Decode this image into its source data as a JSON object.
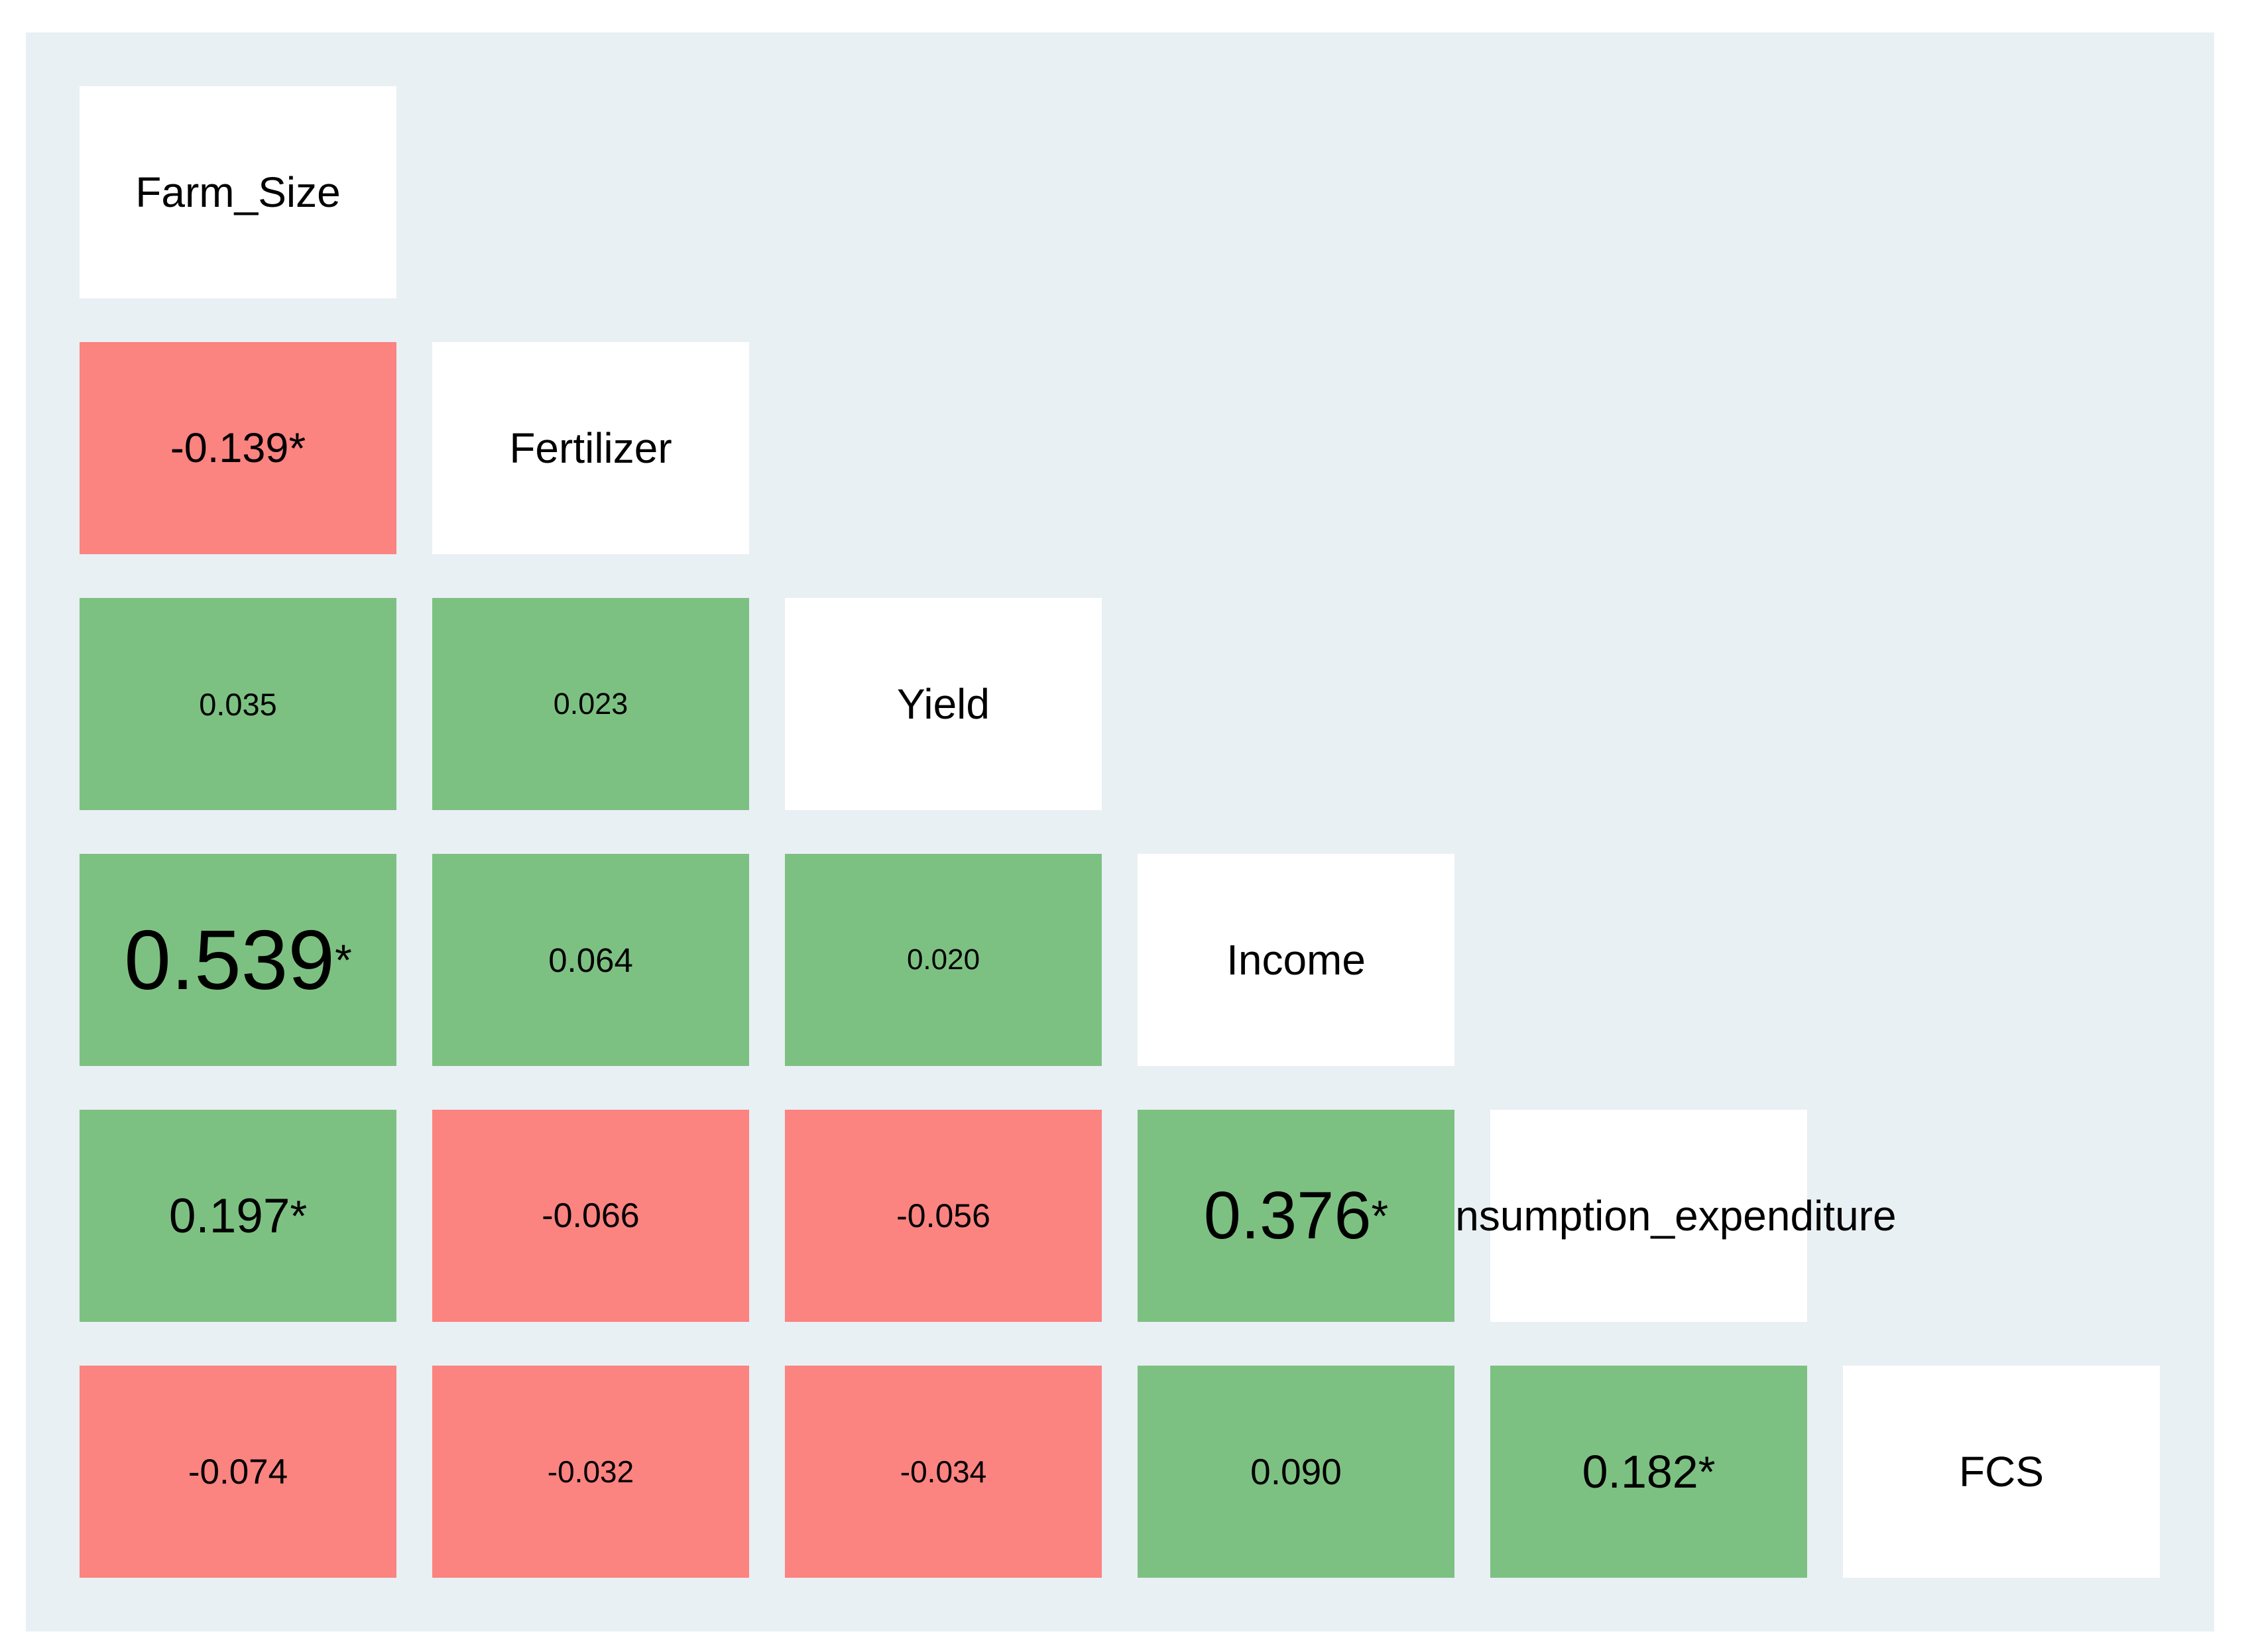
{
  "figure": {
    "page_background": "#ffffff",
    "panel_background": "#e8f0f3",
    "text_color": "#000000"
  },
  "chart_data": {
    "type": "heatmap",
    "subtype": "lower-triangle correlation matrix",
    "title": "",
    "variables": [
      "Farm_Size",
      "Fertilizer",
      "Yield",
      "Income",
      "Consumption_expenditure",
      "FCS"
    ],
    "significance_marker": "*",
    "legend_position": "none",
    "grid_on": false,
    "colors": {
      "positive": "#7dc182",
      "negative": "#fb8380",
      "diagonal": "#ffffff"
    },
    "correlations": [
      {
        "row": "Fertilizer",
        "col": "Farm_Size",
        "value": -0.139,
        "text": "-0.139",
        "significant": true
      },
      {
        "row": "Yield",
        "col": "Farm_Size",
        "value": 0.035,
        "text": "0.035",
        "significant": false
      },
      {
        "row": "Yield",
        "col": "Fertilizer",
        "value": 0.023,
        "text": "0.023",
        "significant": false
      },
      {
        "row": "Income",
        "col": "Farm_Size",
        "value": 0.539,
        "text": "0.539",
        "significant": true
      },
      {
        "row": "Income",
        "col": "Fertilizer",
        "value": 0.064,
        "text": "0.064",
        "significant": false
      },
      {
        "row": "Income",
        "col": "Yield",
        "value": 0.02,
        "text": "0.020",
        "significant": false
      },
      {
        "row": "Consumption_expenditure",
        "col": "Farm_Size",
        "value": 0.197,
        "text": "0.197",
        "significant": true
      },
      {
        "row": "Consumption_expenditure",
        "col": "Fertilizer",
        "value": -0.066,
        "text": "-0.066",
        "significant": false
      },
      {
        "row": "Consumption_expenditure",
        "col": "Yield",
        "value": -0.056,
        "text": "-0.056",
        "significant": false
      },
      {
        "row": "Consumption_expenditure",
        "col": "Income",
        "value": 0.376,
        "text": "0.376",
        "significant": true
      },
      {
        "row": "FCS",
        "col": "Farm_Size",
        "value": -0.074,
        "text": "-0.074",
        "significant": false
      },
      {
        "row": "FCS",
        "col": "Fertilizer",
        "value": -0.032,
        "text": "-0.032",
        "significant": false
      },
      {
        "row": "FCS",
        "col": "Yield",
        "value": -0.034,
        "text": "-0.034",
        "significant": false
      },
      {
        "row": "FCS",
        "col": "Income",
        "value": 0.09,
        "text": "0.090",
        "significant": false
      },
      {
        "row": "FCS",
        "col": "Consumption_expenditure",
        "value": 0.182,
        "text": "0.182",
        "significant": true
      }
    ]
  }
}
